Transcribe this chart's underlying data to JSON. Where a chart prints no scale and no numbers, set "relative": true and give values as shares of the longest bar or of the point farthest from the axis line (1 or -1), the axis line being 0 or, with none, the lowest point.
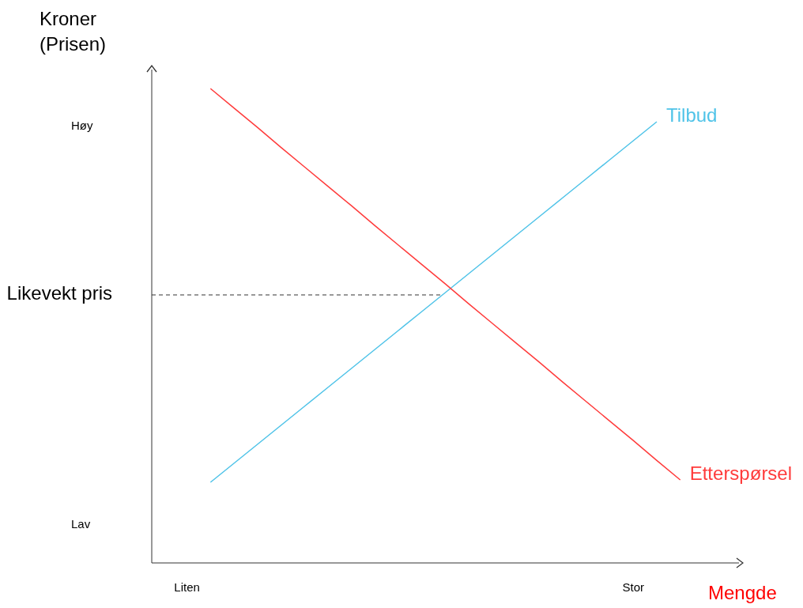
{
  "chart_data": {
    "type": "line",
    "relative": true,
    "ylabel": "Kroner (Prisen)",
    "xlabel": "Mengde",
    "categories": [
      null,
      "Liten",
      null,
      null,
      null,
      null,
      null,
      null,
      null,
      null,
      null,
      null,
      null,
      null,
      null,
      null,
      null,
      null,
      null,
      null,
      "Stor",
      null,
      null,
      null,
      null
    ],
    "annotations": [
      "Høy",
      "Lav"
    ],
    "ref_lines": [
      {
        "axis": "y",
        "value": 0.565,
        "label": "Likevekt pris",
        "line_style": "dashed",
        "color": "#333333"
      }
    ],
    "series": [
      {
        "name": "Tilbud",
        "color": "#4fc3e8",
        "values": [
          null,
          null,
          0.17,
          0.21,
          0.25,
          0.29,
          0.33,
          0.37,
          0.41,
          0.45,
          0.49,
          0.53,
          0.57,
          0.61,
          0.65,
          0.69,
          0.73,
          0.77,
          0.81,
          0.85,
          0.89,
          0.93,
          null,
          null,
          null
        ]
      },
      {
        "name": "Etterspørsel",
        "color": "#ff3b3b",
        "values": [
          null,
          null,
          1,
          0.959,
          0.918,
          0.876,
          0.835,
          0.794,
          0.753,
          0.711,
          0.67,
          0.629,
          0.588,
          0.546,
          0.505,
          0.464,
          0.423,
          0.381,
          0.34,
          0.299,
          0.258,
          0.216,
          0.175,
          null,
          null
        ]
      }
    ]
  }
}
